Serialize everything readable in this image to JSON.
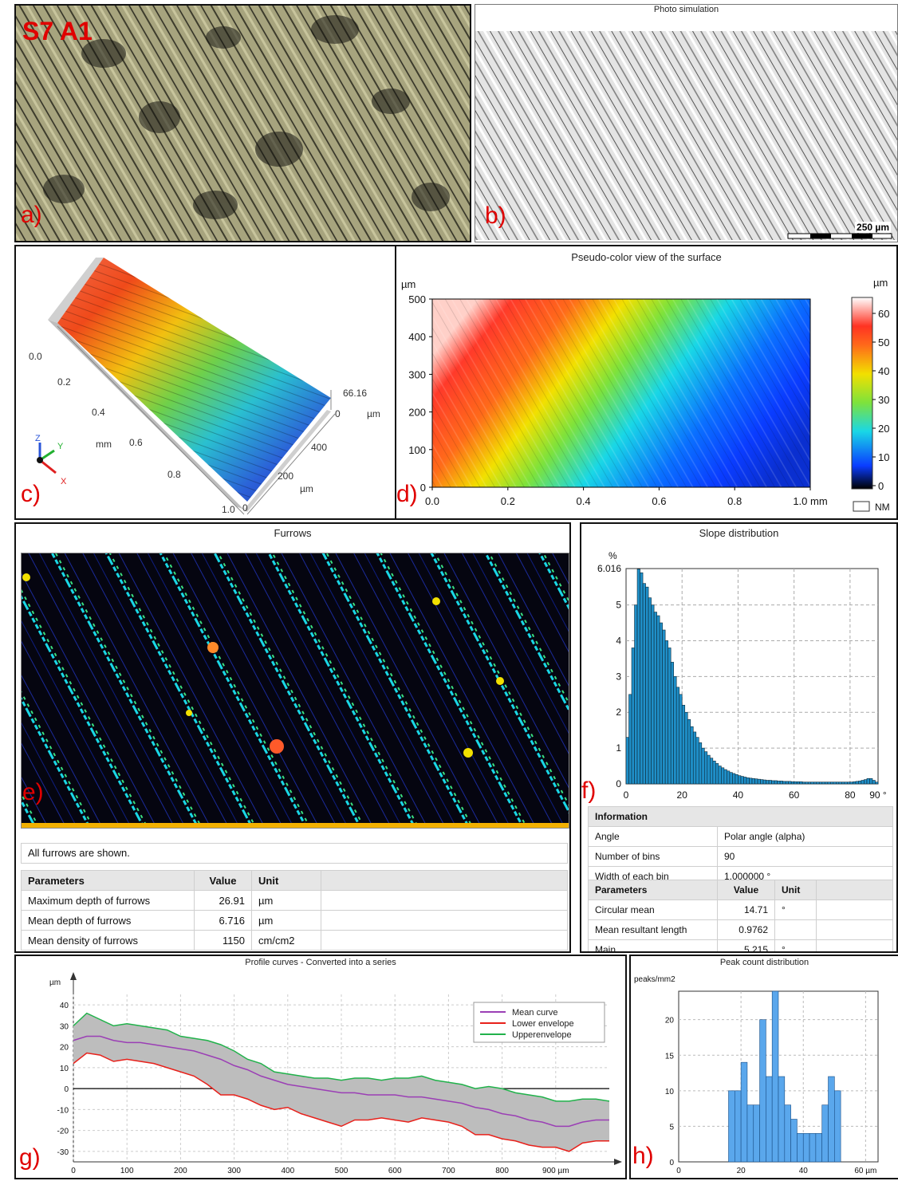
{
  "panel_a": {
    "sample_label": "S7 A1",
    "letter": "a)"
  },
  "panel_b": {
    "title": "Photo simulation",
    "scale_label": "250 µm",
    "letter": "b)"
  },
  "panel_c": {
    "letter": "c)",
    "x_ticks": [
      "0.0",
      "0.2",
      "0.4",
      "0.6",
      "0.8",
      "1.0"
    ],
    "x_unit": "mm",
    "y_ticks": [
      "400",
      "200",
      "0"
    ],
    "y_unit": "µm",
    "z_ticks": [
      "66.16",
      "0"
    ],
    "z_unit": "µm",
    "axis_letters": [
      "Z",
      "Y",
      "X"
    ]
  },
  "panel_d": {
    "title": "Pseudo-color view of the surface",
    "letter": "d)",
    "y_unit": "µm",
    "y_ticks": [
      "500",
      "400",
      "300",
      "200",
      "100",
      "0"
    ],
    "x_ticks": [
      "0.0",
      "0.2",
      "0.4",
      "0.6",
      "0.8",
      "1.0 mm"
    ],
    "colorbar_unit": "µm",
    "colorbar_ticks": [
      "60",
      "50",
      "40",
      "30",
      "20",
      "10",
      "0"
    ],
    "nm_label": "NM",
    "colors": {
      "low": "#000000",
      "blue": "#0a3cff",
      "cyan": "#19d7e6",
      "green": "#7de23c",
      "yellow": "#f2e000",
      "orange": "#ff6a1a",
      "red": "#ff3322",
      "high": "#ffffff"
    }
  },
  "panel_e": {
    "title": "Furrows",
    "letter": "e)",
    "note": "All furrows are shown.",
    "table_headers": [
      "Parameters",
      "Value",
      "Unit"
    ],
    "rows": [
      [
        "Maximum depth of furrows",
        "26.91",
        "µm"
      ],
      [
        "Mean depth of furrows",
        "6.716",
        "µm"
      ],
      [
        "Mean density of furrows",
        "1150",
        "cm/cm2"
      ]
    ]
  },
  "panel_f": {
    "title": "Slope distribution",
    "letter": "f)",
    "info_header": "Information",
    "info_rows": [
      [
        "Angle",
        "Polar angle (alpha)"
      ],
      [
        "Number of bins",
        "90"
      ],
      [
        "Width of each bin",
        "1.000000 °"
      ]
    ],
    "table_headers": [
      "Parameters",
      "Value",
      "Unit"
    ],
    "rows": [
      [
        "Circular mean",
        "14.71",
        "°"
      ],
      [
        "Mean resultant length",
        "0.9762",
        ""
      ],
      [
        "Main",
        "5.215",
        "°"
      ]
    ]
  },
  "panel_g": {
    "title": "Profile curves - Converted into a series",
    "letter": "g)"
  },
  "panel_h": {
    "title": "Peak count distribution",
    "letter": "h)"
  },
  "chart_data": [
    {
      "type": "bar",
      "title": "Slope distribution",
      "ylabel": "%",
      "ylim": [
        0,
        6.016
      ],
      "xlim": [
        0,
        90
      ],
      "x_unit": "°",
      "y_ticks": [
        0,
        1,
        2,
        3,
        4,
        5,
        6.016
      ],
      "x_ticks": [
        0,
        20,
        40,
        60,
        80,
        90
      ],
      "bin_width": 1,
      "values": [
        1.3,
        2.5,
        3.8,
        5.0,
        6.0,
        5.9,
        5.6,
        5.5,
        5.2,
        5.0,
        4.8,
        4.7,
        4.5,
        4.3,
        4.0,
        3.8,
        3.4,
        3.0,
        2.7,
        2.5,
        2.2,
        2.0,
        1.8,
        1.6,
        1.45,
        1.3,
        1.15,
        1.0,
        0.9,
        0.8,
        0.72,
        0.64,
        0.57,
        0.5,
        0.45,
        0.4,
        0.36,
        0.32,
        0.29,
        0.26,
        0.23,
        0.21,
        0.19,
        0.17,
        0.16,
        0.15,
        0.14,
        0.13,
        0.12,
        0.11,
        0.1,
        0.1,
        0.09,
        0.09,
        0.08,
        0.08,
        0.07,
        0.07,
        0.07,
        0.06,
        0.06,
        0.06,
        0.06,
        0.05,
        0.05,
        0.05,
        0.05,
        0.05,
        0.05,
        0.05,
        0.05,
        0.05,
        0.05,
        0.05,
        0.05,
        0.05,
        0.05,
        0.05,
        0.05,
        0.05,
        0.05,
        0.06,
        0.07,
        0.08,
        0.1,
        0.12,
        0.15,
        0.15,
        0.1,
        0.05
      ],
      "colors": {
        "bar": "#1f8fc8",
        "edge": "#0d2a3a"
      }
    },
    {
      "type": "line",
      "title": "Profile curves - Converted into a series",
      "ylabel": "µm",
      "x_unit": "µm",
      "xlim": [
        0,
        1000
      ],
      "ylim": [
        -35,
        45
      ],
      "x_ticks": [
        0,
        100,
        200,
        300,
        400,
        500,
        600,
        700,
        800,
        900
      ],
      "y_ticks": [
        40,
        30,
        20,
        10,
        0,
        -10,
        -20,
        -30
      ],
      "x": [
        0,
        25,
        50,
        75,
        100,
        125,
        150,
        175,
        200,
        225,
        250,
        275,
        300,
        325,
        350,
        375,
        400,
        425,
        450,
        475,
        500,
        525,
        550,
        575,
        600,
        625,
        650,
        675,
        700,
        725,
        750,
        775,
        800,
        825,
        850,
        875,
        900,
        925,
        950,
        975,
        1000
      ],
      "series": [
        {
          "name": "Mean curve",
          "color": "#9b3fb5",
          "values": [
            23,
            25,
            25,
            23,
            22,
            22,
            21,
            20,
            19,
            18,
            16,
            14,
            11,
            9,
            6,
            4,
            2,
            1,
            0,
            -1,
            -2,
            -2,
            -3,
            -3,
            -3,
            -4,
            -4,
            -5,
            -6,
            -7,
            -9,
            -10,
            -12,
            -13,
            -15,
            -16,
            -18,
            -18,
            -16,
            -15,
            -15
          ]
        },
        {
          "name": "Lower envelope",
          "color": "#e8201a",
          "values": [
            12,
            17,
            16,
            13,
            14,
            13,
            12,
            10,
            8,
            6,
            2,
            -3,
            -3,
            -5,
            -8,
            -10,
            -9,
            -12,
            -14,
            -16,
            -18,
            -15,
            -15,
            -14,
            -15,
            -16,
            -14,
            -15,
            -16,
            -18,
            -22,
            -22,
            -24,
            -25,
            -27,
            -28,
            -28,
            -30,
            -26,
            -25,
            -25
          ]
        },
        {
          "name": "Upperenvelope",
          "color": "#21b24b",
          "values": [
            30,
            36,
            33,
            30,
            31,
            30,
            29,
            28,
            25,
            24,
            23,
            21,
            18,
            14,
            12,
            8,
            7,
            6,
            5,
            5,
            4,
            5,
            5,
            4,
            5,
            5,
            6,
            4,
            3,
            2,
            0,
            1,
            0,
            -2,
            -3,
            -4,
            -6,
            -6,
            -5,
            -5,
            -6
          ]
        }
      ],
      "fill_color": "#bdbdbd"
    },
    {
      "type": "bar",
      "title": "Peak count distribution",
      "ylabel": "peaks/mm2",
      "x_unit": "µm",
      "xlim": [
        0,
        64
      ],
      "ylim": [
        0,
        24
      ],
      "x_ticks": [
        0,
        20,
        40,
        60
      ],
      "y_ticks": [
        0,
        5,
        10,
        15,
        20
      ],
      "bin_width": 2,
      "bins_start": [
        0,
        2,
        4,
        6,
        8,
        10,
        12,
        14,
        16,
        18,
        20,
        22,
        24,
        26,
        28,
        30,
        32,
        34,
        36,
        38,
        40,
        42,
        44,
        46,
        48,
        50,
        52,
        54,
        56,
        58,
        60,
        62
      ],
      "values": [
        0,
        0,
        0,
        0,
        0,
        0,
        0,
        0,
        10,
        10,
        14,
        8,
        8,
        20,
        12,
        24,
        12,
        8,
        6,
        4,
        4,
        4,
        4,
        8,
        12,
        10,
        0,
        0,
        0,
        0,
        0,
        0
      ],
      "colors": {
        "bar": "#5aa7ec",
        "edge": "#1a4f86"
      }
    }
  ]
}
